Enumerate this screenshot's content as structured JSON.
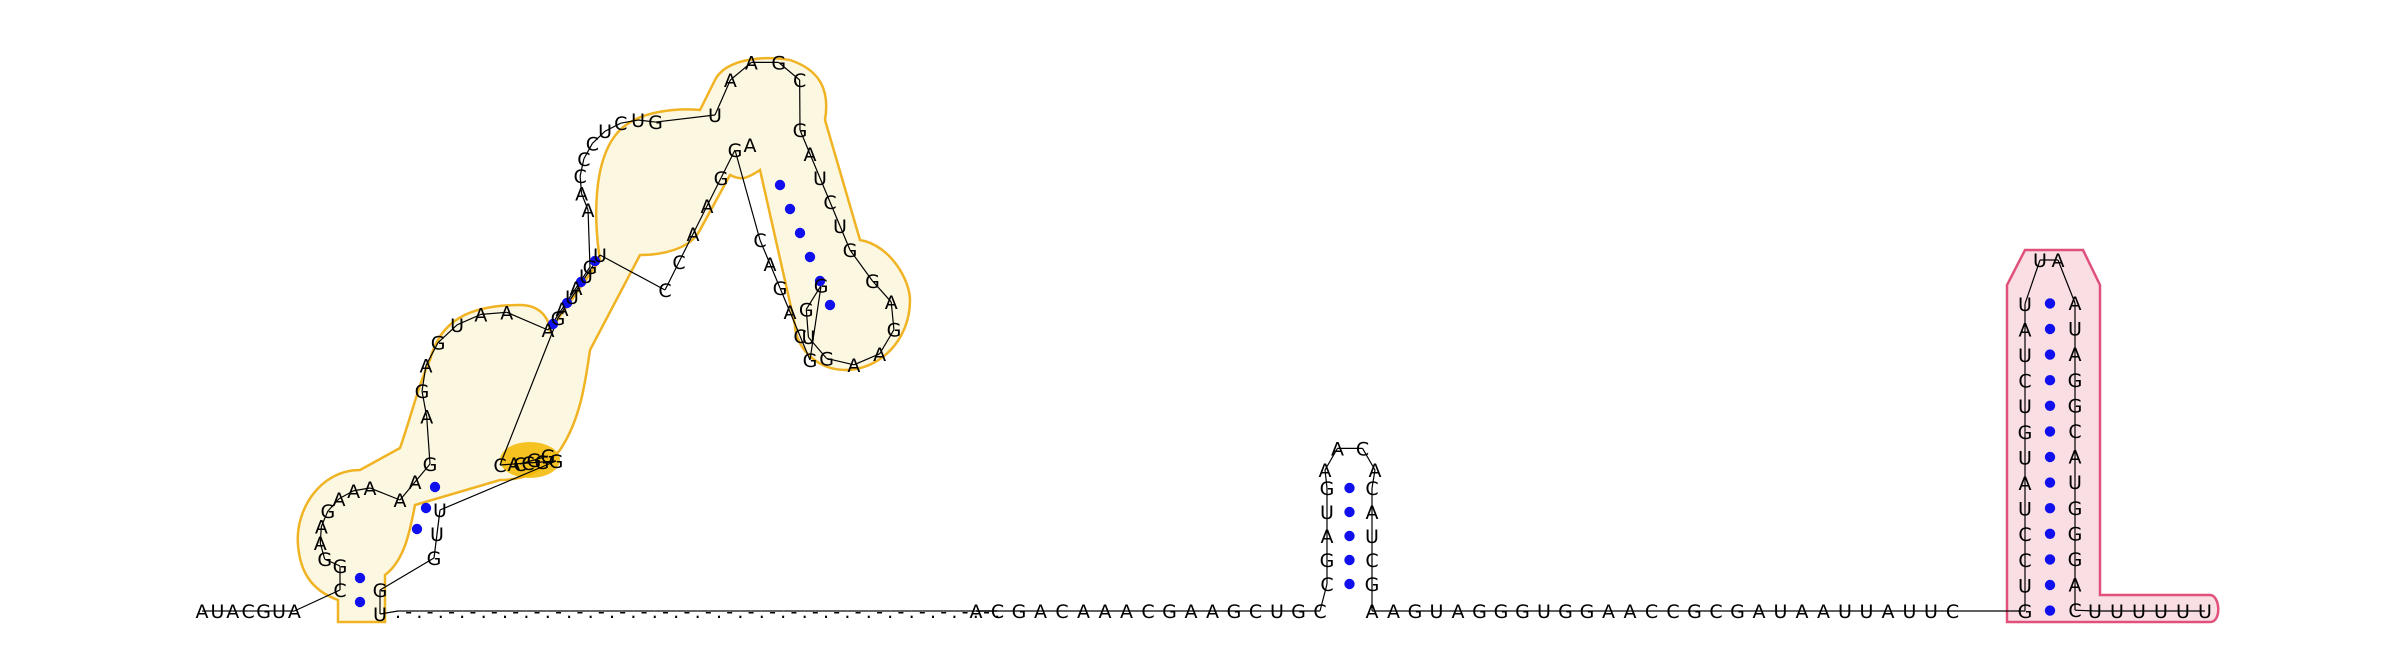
{
  "colors": {
    "background": "#ffffff",
    "nucleotide": "#000000",
    "pair_dot": "#1010ee",
    "region1_outline": "#f0b323",
    "region1_fill": "rgba(250,240,200,0.55)",
    "region1_highlight": "#f5b800",
    "region2_outline": "#e0507a",
    "region2_fill": "rgba(245,200,210,0.6)"
  },
  "rna": {
    "five_prime_leader": "AUACGUA",
    "region1": {
      "stem1_5p": "CG",
      "stem1_3p": "GU",
      "left_loop": "GAAGAAA",
      "stem2_5p": "AAG",
      "stem2_3p": "UUG",
      "interior_left": "AGAGUAA",
      "interior_right": "CACGG",
      "highlight": "CGG",
      "stem3_5p": "AAAG",
      "stem3_3p": "UUUG",
      "junction_left": "AACCCUCUG",
      "junction_right": "GGAACC",
      "stem4_5p": "U",
      "stem4_3p": "A",
      "top_loop": "AAGC",
      "stem5_5p": "GAUCUG",
      "stem5_3p": "GCAGAC",
      "right_loop": "GAGAAGUGG"
    },
    "gap": ".-.-.-.-.-.-.-.-.-.-.-.-.-.-.-.-.-.-.-.-.-.-.-.-.-.-.-.-.",
    "linker1": "ACGACAAACGAAGCUGC",
    "hairpin_small": {
      "stem_5p": "CGAUG",
      "loop": "AACA",
      "stem_3p": "CAUCG"
    },
    "linker2": "AAGUAGGGUGGAACCGCGAUAAUUAUUC",
    "region2": {
      "stem_5p": "GUCCUAUGUCUAU",
      "loop": "UA",
      "stem_3p": "AUAGGCAUGGGAC"
    },
    "three_prime_tail": "UUUUUU"
  }
}
